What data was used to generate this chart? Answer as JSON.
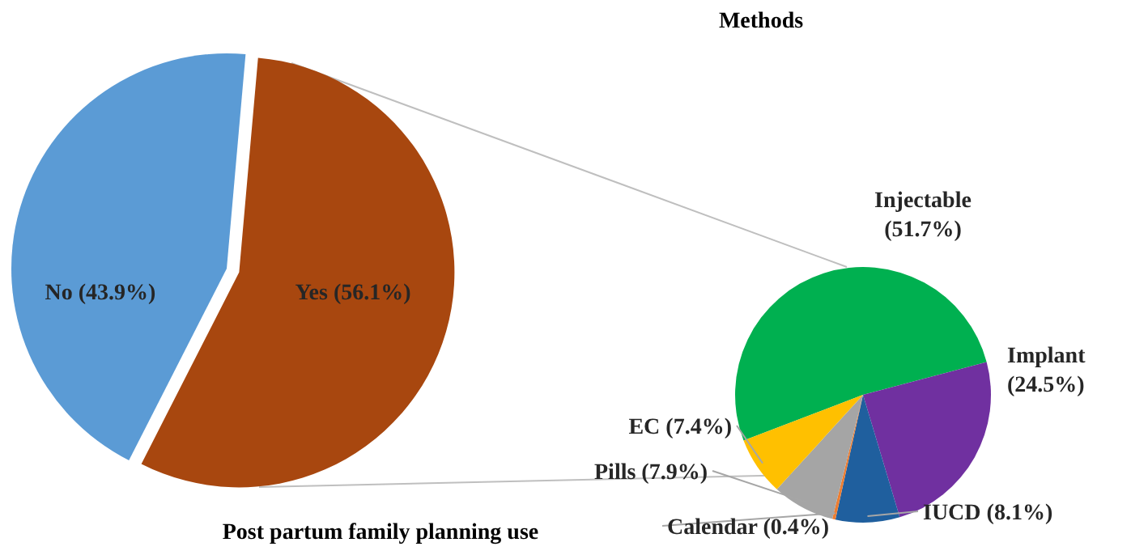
{
  "chart_data": [
    {
      "type": "pie",
      "title": "Post partum family planning use",
      "categories": [
        "No",
        "Yes"
      ],
      "values": [
        43.9,
        56.1
      ],
      "colors": [
        "#5b9bd5",
        "#a8470f"
      ],
      "value_labels": [
        "(43.9%)",
        "(56.1%)"
      ]
    },
    {
      "type": "pie",
      "title": "Methods",
      "categories": [
        "Injectable",
        "Implant",
        "IUCD",
        "Calendar",
        "Pills",
        "EC"
      ],
      "values": [
        51.7,
        24.5,
        8.1,
        0.4,
        7.9,
        7.4
      ],
      "colors": [
        "#00b050",
        "#7030a0",
        "#1f5f9e",
        "#ed7d31",
        "#a5a5a5",
        "#ffc000"
      ],
      "value_labels": [
        "(51.7%)",
        "(24.5%)",
        "(8.1%)",
        "(0.4%)",
        "(7.9%)",
        "(7.4%)"
      ]
    }
  ]
}
